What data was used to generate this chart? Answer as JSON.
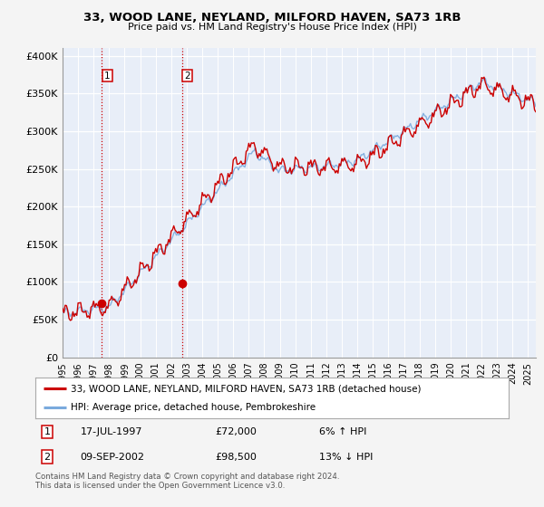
{
  "title": "33, WOOD LANE, NEYLAND, MILFORD HAVEN, SA73 1RB",
  "subtitle": "Price paid vs. HM Land Registry's House Price Index (HPI)",
  "ylabel_ticks": [
    "£0",
    "£50K",
    "£100K",
    "£150K",
    "£200K",
    "£250K",
    "£300K",
    "£350K",
    "£400K"
  ],
  "ytick_values": [
    0,
    50000,
    100000,
    150000,
    200000,
    250000,
    300000,
    350000,
    400000
  ],
  "ylim": [
    0,
    410000
  ],
  "xlim_start": 1995.0,
  "xlim_end": 2025.5,
  "purchase1_x": 1997.54,
  "purchase1_y": 72000,
  "purchase1_label": "1",
  "purchase1_date": "17-JUL-1997",
  "purchase1_price": "£72,000",
  "purchase1_hpi": "6% ↑ HPI",
  "purchase2_x": 2002.69,
  "purchase2_y": 98500,
  "purchase2_label": "2",
  "purchase2_date": "09-SEP-2002",
  "purchase2_price": "£98,500",
  "purchase2_hpi": "13% ↓ HPI",
  "line1_label": "33, WOOD LANE, NEYLAND, MILFORD HAVEN, SA73 1RB (detached house)",
  "line2_label": "HPI: Average price, detached house, Pembrokeshire",
  "line1_color": "#cc0000",
  "line2_color": "#7aaadd",
  "vline_color": "#cc0000",
  "footer": "Contains HM Land Registry data © Crown copyright and database right 2024.\nThis data is licensed under the Open Government Licence v3.0.",
  "plot_bg": "#e8eef8",
  "grid_color": "#ffffff",
  "fig_bg": "#f4f4f4"
}
